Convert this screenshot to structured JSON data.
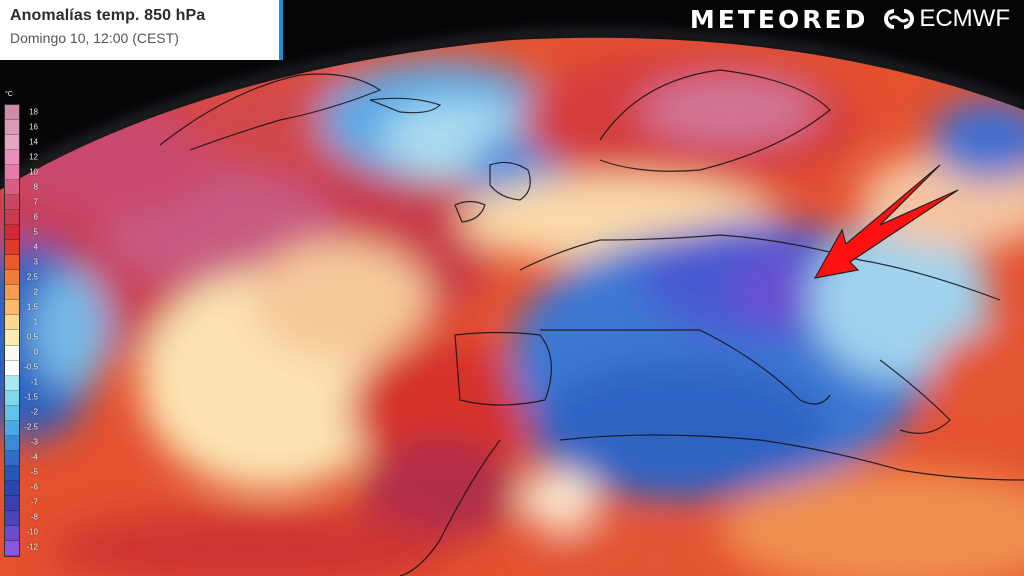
{
  "header": {
    "title": "Anomalías temp. 850 hPa",
    "subtitle": "Domingo 10, 12:00 (CEST)"
  },
  "branding": {
    "meteored": "METEORED",
    "ecmwf": "ECMWF"
  },
  "legend": {
    "unit": "°C",
    "labels": [
      "18",
      "16",
      "14",
      "12",
      "10",
      "8",
      "7",
      "6",
      "5",
      "4",
      "3",
      "2.5",
      "2",
      "1.5",
      "1",
      "0.5",
      "0",
      "-0.5",
      "-1",
      "-1.5",
      "-2",
      "-2.5",
      "-3",
      "-4",
      "-5",
      "-6",
      "-7",
      "-8",
      "-10",
      "-12"
    ],
    "colors": [
      "#cf8aa8",
      "#d99ab8",
      "#e2a6c4",
      "#e98fba",
      "#e47aa8",
      "#d75f86",
      "#c94863",
      "#c83a4e",
      "#d22a35",
      "#dc3b2c",
      "#e85a2d",
      "#f07c3c",
      "#f59b52",
      "#f8bb6d",
      "#fbd88f",
      "#fcecb0",
      "#fdfaf2",
      "#ffffff",
      "#a8e8f0",
      "#7fd7ea",
      "#62c2ec",
      "#4fa8e6",
      "#3b8ad8",
      "#2f6ec8",
      "#2457b7",
      "#2a47b0",
      "#3b3fb0",
      "#4e42b8",
      "#6a4ccc",
      "#8a56e0"
    ]
  },
  "annotation": {
    "arrow_color": "#ff1111",
    "arrow_target": "Balkans / Central Europe cold anomaly"
  },
  "map": {
    "description": "ECMWF 850 hPa temperature anomaly over North Atlantic and Europe",
    "warm_color": "#d9362f",
    "cold_color": "#2d5fc6"
  }
}
